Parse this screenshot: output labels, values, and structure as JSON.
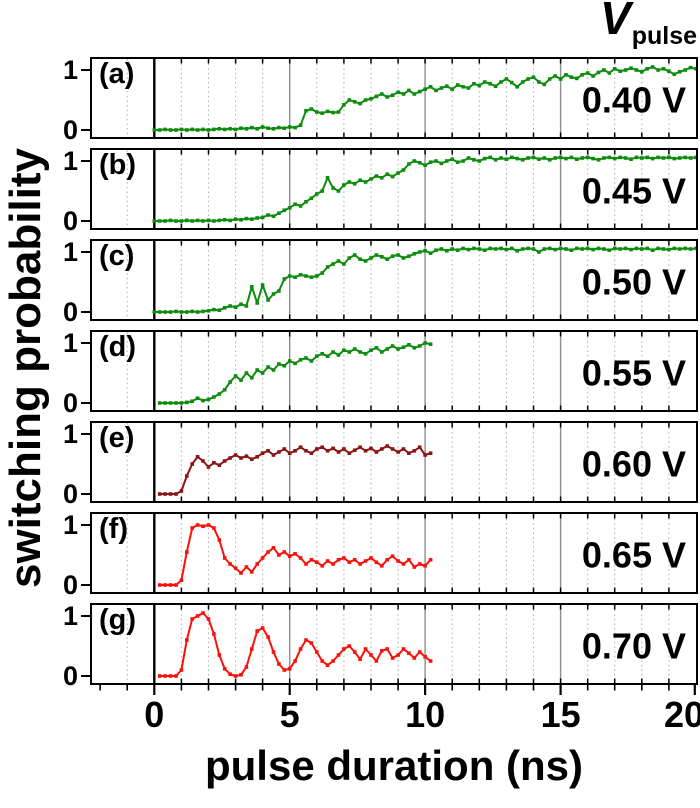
{
  "figure": {
    "y_axis_label": "switching probability",
    "x_axis_label": "pulse duration (ns)",
    "legend_symbol": "V",
    "legend_subscript": "pulse",
    "y_tick_labels": [
      "1",
      "0"
    ],
    "x_tick_labels": [
      "0",
      "5",
      "10",
      "15",
      "20"
    ],
    "colors": {
      "green_curve": "#0e8c0e",
      "dark_red_curve": "#8b1414",
      "red_curve": "#fb100a",
      "grid_dotted": "#b9b9b9",
      "grid_solid": "#8e8e8e",
      "axis": "#000000"
    }
  },
  "chart_data": {
    "type": "line",
    "title": "",
    "xlabel": "pulse duration (ns)",
    "ylabel": "switching probability",
    "legend_title": "V pulse",
    "xlim": [
      -2.3,
      20
    ],
    "ylim": [
      0,
      1
    ],
    "x_ticks": [
      0,
      5,
      10,
      15,
      20
    ],
    "x_minor_tick_step": 1,
    "y_ticks": [
      0,
      1
    ],
    "grid": "vertical-every-1ns-dotted, solid-at-5-10-15, black-line-at-0",
    "series": [
      {
        "panel": "(a)",
        "voltage": "0.40 V",
        "name": "0.40 V",
        "color": "#0e8c0e",
        "x0": 0,
        "dx": 0.2,
        "values": [
          0,
          0,
          0.01,
          0,
          0,
          0.01,
          0,
          0.01,
          0,
          0.01,
          0,
          0.01,
          0.02,
          0.01,
          0.02,
          0.01,
          0.03,
          0.02,
          0.04,
          0.02,
          0.05,
          0.03,
          0.02,
          0.04,
          0.03,
          0.05,
          0.04,
          0.08,
          0.32,
          0.35,
          0.3,
          0.28,
          0.31,
          0.29,
          0.3,
          0.42,
          0.5,
          0.47,
          0.44,
          0.5,
          0.52,
          0.56,
          0.6,
          0.55,
          0.58,
          0.63,
          0.6,
          0.66,
          0.6,
          0.64,
          0.68,
          0.72,
          0.66,
          0.7,
          0.73,
          0.68,
          0.75,
          0.72,
          0.7,
          0.77,
          0.74,
          0.8,
          0.77,
          0.73,
          0.8,
          0.85,
          0.79,
          0.72,
          0.8,
          0.85,
          0.88,
          0.8,
          0.76,
          0.85,
          0.9,
          0.85,
          0.92,
          0.88,
          0.86,
          0.92,
          0.95,
          0.9,
          0.96,
          1,
          0.95,
          1.02,
          0.98,
          1,
          1.03,
          1,
          0.97,
          1.02,
          1.05,
          1,
          1.02,
          0.98,
          0.93,
          0.97,
          1,
          1.04,
          1.02
        ]
      },
      {
        "panel": "(b)",
        "voltage": "0.45 V",
        "name": "0.45 V",
        "color": "#0e8c0e",
        "x0": 0,
        "dx": 0.2,
        "values": [
          0,
          0,
          0,
          0.01,
          0,
          0,
          0.01,
          0,
          0.01,
          0,
          0.01,
          0,
          0.01,
          0.02,
          0.01,
          0.03,
          0.02,
          0.04,
          0.03,
          0.05,
          0.06,
          0.1,
          0.08,
          0.13,
          0.18,
          0.22,
          0.28,
          0.25,
          0.32,
          0.38,
          0.45,
          0.5,
          0.72,
          0.55,
          0.5,
          0.6,
          0.65,
          0.62,
          0.68,
          0.65,
          0.7,
          0.75,
          0.72,
          0.78,
          0.74,
          0.8,
          0.85,
          0.95,
          1,
          0.97,
          0.93,
          0.98,
          1,
          0.96,
          1,
          1.03,
          0.98,
          1,
          1.05,
          1.02,
          1,
          1.04,
          1.06,
          1.02,
          1.05,
          1.03,
          1.06,
          1.04,
          1.02,
          1.05,
          1.06,
          1.03,
          1.05,
          1.02,
          1.05,
          1.06,
          1.04,
          1.06,
          1.03,
          1.05,
          1.06,
          1.04,
          1.02,
          1.05,
          1.06,
          1.04,
          1.06,
          1.05,
          1.03,
          1.06,
          1.05,
          1.06,
          1.04,
          1.06,
          1.05,
          1.06,
          1.04,
          1.05,
          1.06,
          1.05,
          1.06
        ]
      },
      {
        "panel": "(c)",
        "voltage": "0.50 V",
        "name": "0.50 V",
        "color": "#0e8c0e",
        "x0": 0,
        "dx": 0.2,
        "values": [
          0,
          0,
          0,
          0,
          0.01,
          0,
          0,
          0.01,
          0,
          0.01,
          0.02,
          0.04,
          0.03,
          0.07,
          0.1,
          0.08,
          0.13,
          0.1,
          0.42,
          0.15,
          0.45,
          0.2,
          0.3,
          0.35,
          0.55,
          0.6,
          0.58,
          0.62,
          0.6,
          0.58,
          0.6,
          0.65,
          0.75,
          0.8,
          0.85,
          0.8,
          0.9,
          0.95,
          0.88,
          0.85,
          0.9,
          0.95,
          0.92,
          0.88,
          0.93,
          0.95,
          0.9,
          0.93,
          0.97,
          1,
          1.02,
          0.98,
          1.03,
          1.05,
          1.02,
          1.05,
          1.03,
          1.06,
          1.04,
          1.06,
          1.05,
          1.03,
          1.06,
          1.05,
          1.06,
          1.04,
          1.06,
          1.02,
          1.05,
          1.06,
          1.05,
          1,
          1.05,
          1.06,
          1.04,
          1.06,
          1.05,
          1.03,
          1.06,
          1.05,
          1.06,
          1.04,
          1.06,
          1.05,
          1.03,
          1.06,
          1.05,
          1.06,
          1.04,
          1.06,
          1.05,
          1.06,
          1.03,
          1.06,
          1.05,
          1.04,
          1.06,
          1.05,
          1.06,
          1.05,
          1.06
        ]
      },
      {
        "panel": "(d)",
        "voltage": "0.55 V",
        "name": "0.55 V",
        "color": "#0e8c0e",
        "x0": 0.2,
        "dx": 0.2,
        "values": [
          0,
          0,
          0,
          0,
          0,
          0.01,
          0.03,
          0.08,
          0.04,
          0.06,
          0.1,
          0.15,
          0.22,
          0.35,
          0.45,
          0.38,
          0.5,
          0.42,
          0.55,
          0.5,
          0.6,
          0.55,
          0.65,
          0.62,
          0.7,
          0.66,
          0.72,
          0.75,
          0.7,
          0.78,
          0.82,
          0.78,
          0.85,
          0.8,
          0.88,
          0.85,
          0.9,
          0.85,
          0.82,
          0.88,
          0.92,
          0.85,
          0.9,
          0.95,
          0.9,
          0.93,
          0.97,
          0.92,
          0.95,
          1,
          0.98
        ]
      },
      {
        "panel": "(e)",
        "voltage": "0.60 V",
        "name": "0.60 V",
        "color": "#8b1414",
        "x0": 0.2,
        "dx": 0.2,
        "values": [
          0,
          0,
          0,
          0,
          0.05,
          0.3,
          0.5,
          0.62,
          0.55,
          0.45,
          0.52,
          0.48,
          0.55,
          0.6,
          0.65,
          0.6,
          0.63,
          0.58,
          0.62,
          0.68,
          0.72,
          0.65,
          0.7,
          0.75,
          0.68,
          0.72,
          0.78,
          0.72,
          0.68,
          0.75,
          0.78,
          0.72,
          0.76,
          0.7,
          0.75,
          0.68,
          0.73,
          0.78,
          0.72,
          0.76,
          0.7,
          0.75,
          0.8,
          0.75,
          0.7,
          0.75,
          0.68,
          0.72,
          0.78,
          0.65,
          0.68
        ]
      },
      {
        "panel": "(f)",
        "voltage": "0.65 V",
        "name": "0.65 V",
        "color": "#fb100a",
        "x0": 0.2,
        "dx": 0.2,
        "values": [
          0,
          0,
          0,
          0,
          0.08,
          0.55,
          0.95,
          1,
          0.98,
          1,
          0.95,
          0.75,
          0.45,
          0.35,
          0.28,
          0.2,
          0.3,
          0.22,
          0.35,
          0.45,
          0.55,
          0.62,
          0.5,
          0.55,
          0.48,
          0.52,
          0.45,
          0.35,
          0.42,
          0.38,
          0.32,
          0.4,
          0.35,
          0.42,
          0.45,
          0.38,
          0.42,
          0.35,
          0.4,
          0.45,
          0.38,
          0.32,
          0.42,
          0.48,
          0.4,
          0.35,
          0.42,
          0.3,
          0.35,
          0.32,
          0.42
        ]
      },
      {
        "panel": "(g)",
        "voltage": "0.70 V",
        "name": "0.70 V",
        "color": "#fb100a",
        "x0": 0.2,
        "dx": 0.2,
        "values": [
          0,
          0,
          0,
          0,
          0.1,
          0.6,
          0.95,
          1,
          1.05,
          0.95,
          0.7,
          0.35,
          0.12,
          0.03,
          0,
          0.02,
          0.15,
          0.45,
          0.75,
          0.8,
          0.65,
          0.4,
          0.2,
          0.1,
          0.12,
          0.25,
          0.45,
          0.6,
          0.55,
          0.4,
          0.25,
          0.18,
          0.25,
          0.35,
          0.45,
          0.5,
          0.4,
          0.28,
          0.45,
          0.35,
          0.25,
          0.42,
          0.45,
          0.3,
          0.35,
          0.45,
          0.38,
          0.3,
          0.4,
          0.32,
          0.25
        ]
      }
    ]
  }
}
